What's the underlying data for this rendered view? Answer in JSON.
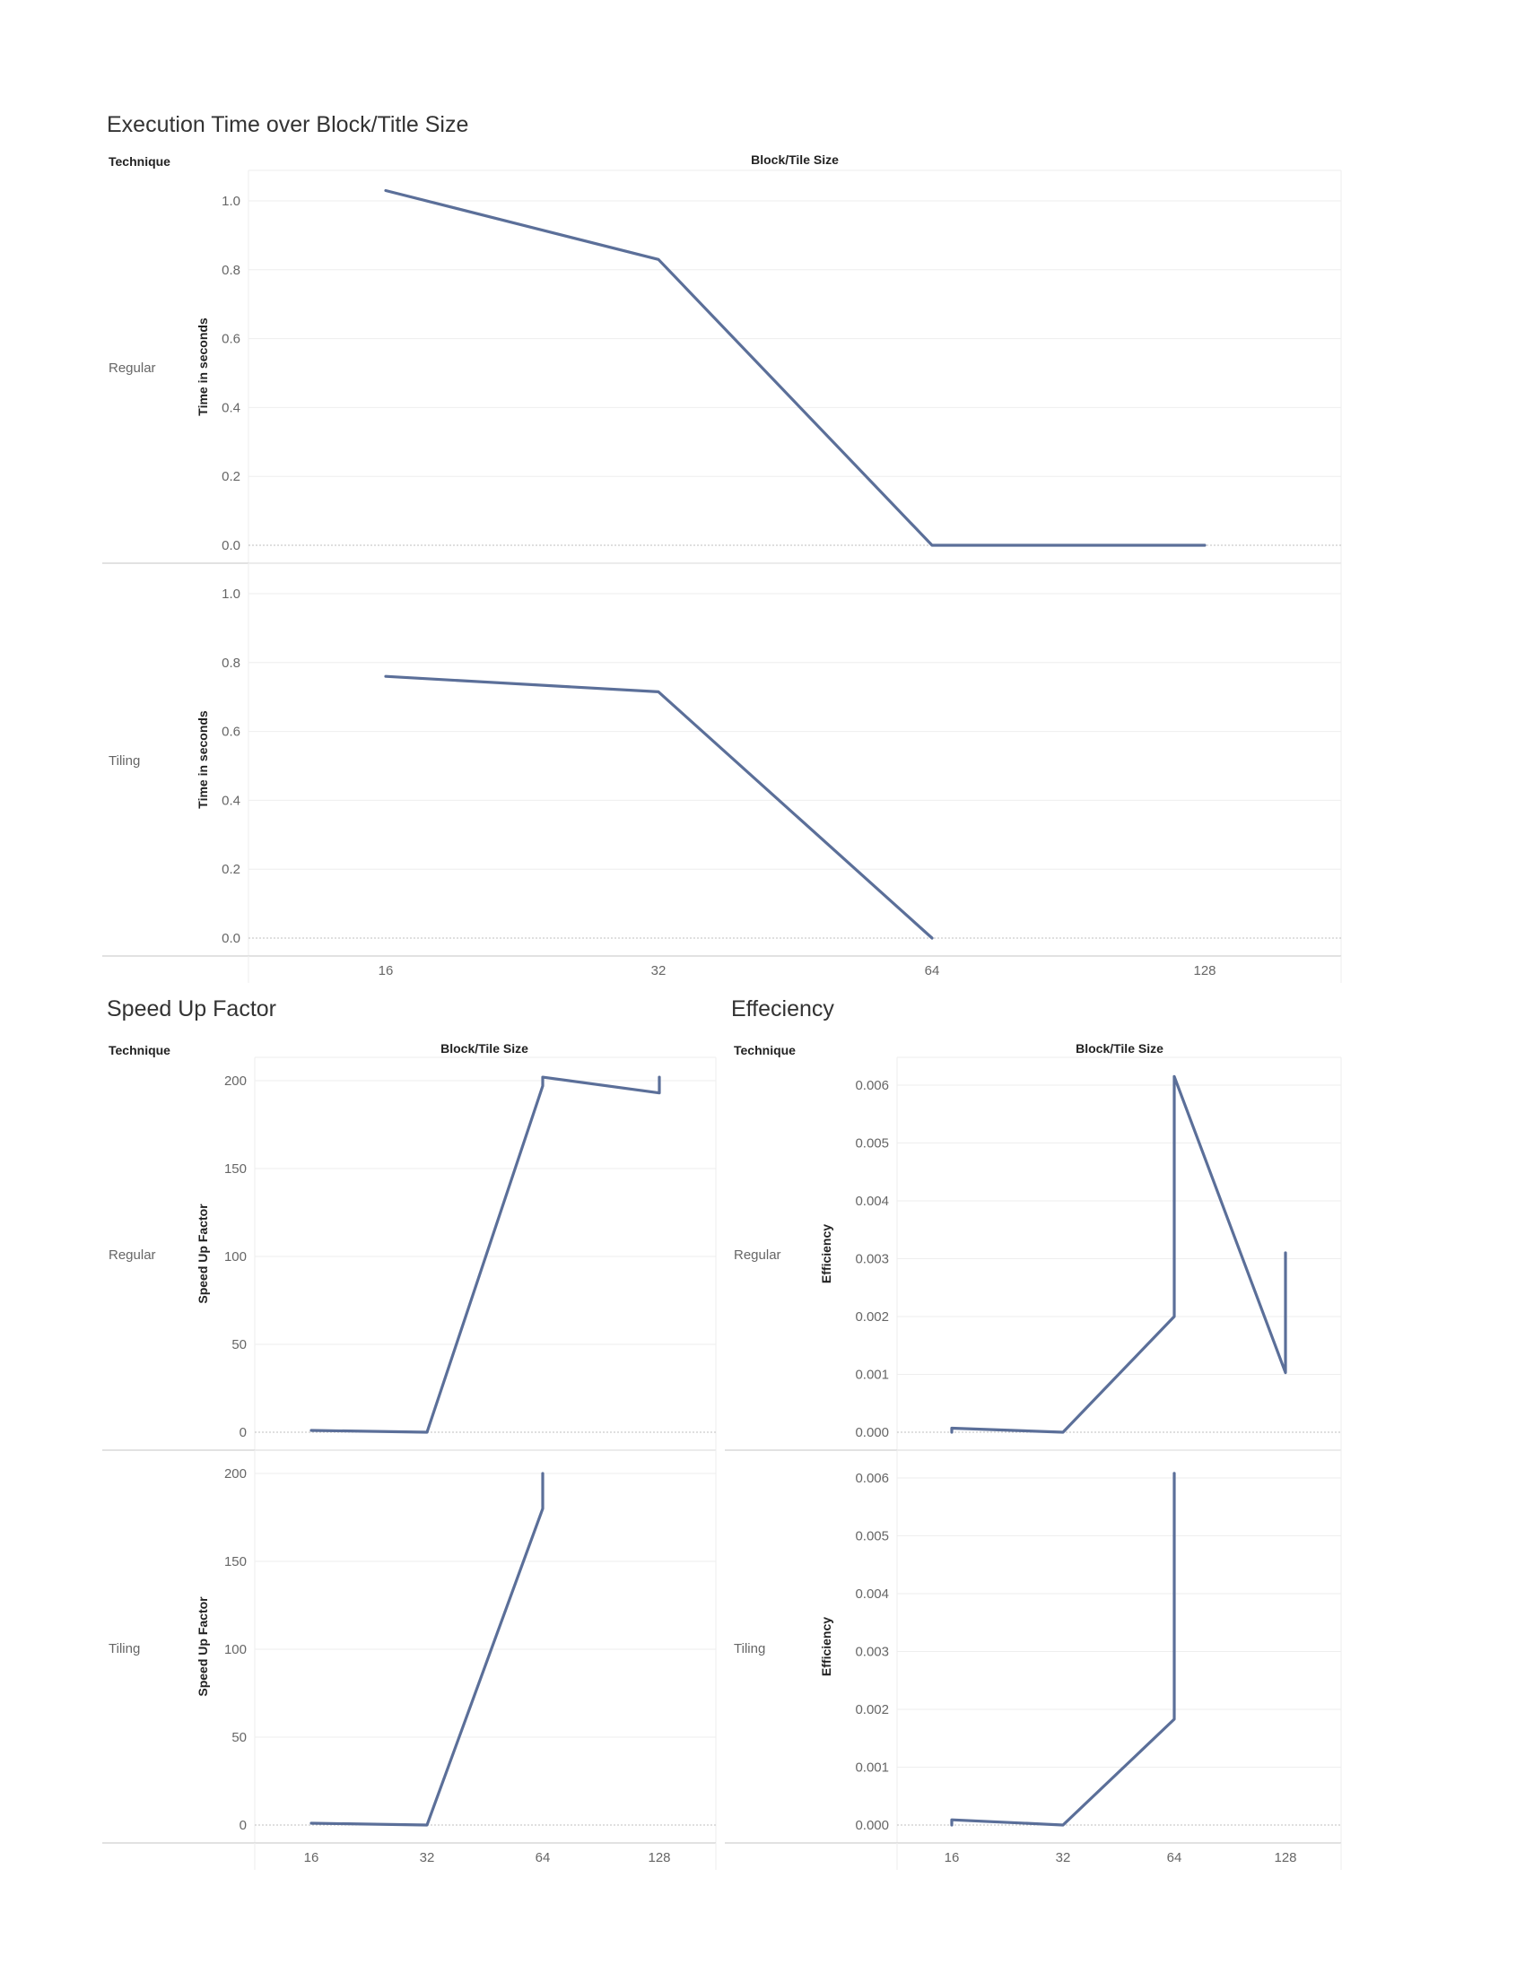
{
  "titles": {
    "exec": "Execution Time over Block/Title Size",
    "speedup": "Speed Up Factor",
    "eff": "Effeciency"
  },
  "headers": {
    "technique": "Technique",
    "xheader": "Block/Tile Size"
  },
  "colors": {
    "line": "#5b6f99",
    "grid": "#eeeeee",
    "axis": "#d8d8d8"
  },
  "chart_data": [
    {
      "type": "line",
      "title": "Execution Time over Block/Title Size",
      "row_header": "Technique",
      "col_header": "Block/Tile Size",
      "ylabel": "Time in seconds",
      "x_ticks": [
        "16",
        "32",
        "64",
        "128"
      ],
      "y_ticks": [
        "0.0",
        "0.2",
        "0.4",
        "0.6",
        "0.8",
        "1.0"
      ],
      "ylim": [
        0,
        1.1
      ],
      "panels": [
        {
          "label": "Regular",
          "points": [
            [
              "16",
              1.03
            ],
            [
              "32",
              0.83
            ],
            [
              "64",
              0.0
            ],
            [
              "128",
              0.0
            ]
          ]
        },
        {
          "label": "Tiling",
          "points": [
            [
              "16",
              0.76
            ],
            [
              "32",
              0.715
            ],
            [
              "64",
              0.0
            ]
          ]
        }
      ]
    },
    {
      "type": "line",
      "title": "Speed Up Factor",
      "row_header": "Technique",
      "col_header": "Block/Tile Size",
      "ylabel": "Speed Up Factor",
      "x_ticks": [
        "16",
        "32",
        "64",
        "128"
      ],
      "y_ticks": [
        "0",
        "50",
        "100",
        "150",
        "200"
      ],
      "ylim": [
        0,
        210
      ],
      "panels": [
        {
          "label": "Regular",
          "points": [
            [
              "16",
              1
            ],
            [
              "32",
              0
            ],
            [
              "64",
              197
            ],
            [
              "64",
              202
            ],
            [
              "128",
              193
            ],
            [
              "128",
              202
            ]
          ]
        },
        {
          "label": "Tiling",
          "points": [
            [
              "16",
              1
            ],
            [
              "32",
              0
            ],
            [
              "64",
              180
            ],
            [
              "64",
              200
            ]
          ]
        }
      ]
    },
    {
      "type": "line",
      "title": "Effeciency",
      "row_header": "Technique",
      "col_header": "Block/Tile Size",
      "ylabel": "Efficiency",
      "x_ticks": [
        "16",
        "32",
        "64",
        "128"
      ],
      "y_ticks": [
        "0.000",
        "0.001",
        "0.002",
        "0.003",
        "0.004",
        "0.005",
        "0.006"
      ],
      "ylim": [
        0,
        0.0065
      ],
      "panels": [
        {
          "label": "Regular",
          "points": [
            [
              "16",
              0.0
            ],
            [
              "16",
              7e-05
            ],
            [
              "32",
              0.0
            ],
            [
              "64",
              0.002
            ],
            [
              "64",
              0.00615
            ],
            [
              "128",
              0.00103
            ],
            [
              "128",
              0.0031
            ]
          ]
        },
        {
          "label": "Tiling",
          "points": [
            [
              "16",
              0.0
            ],
            [
              "16",
              9e-05
            ],
            [
              "32",
              0.0
            ],
            [
              "64",
              0.00183
            ],
            [
              "64",
              0.00608
            ]
          ]
        }
      ]
    }
  ]
}
